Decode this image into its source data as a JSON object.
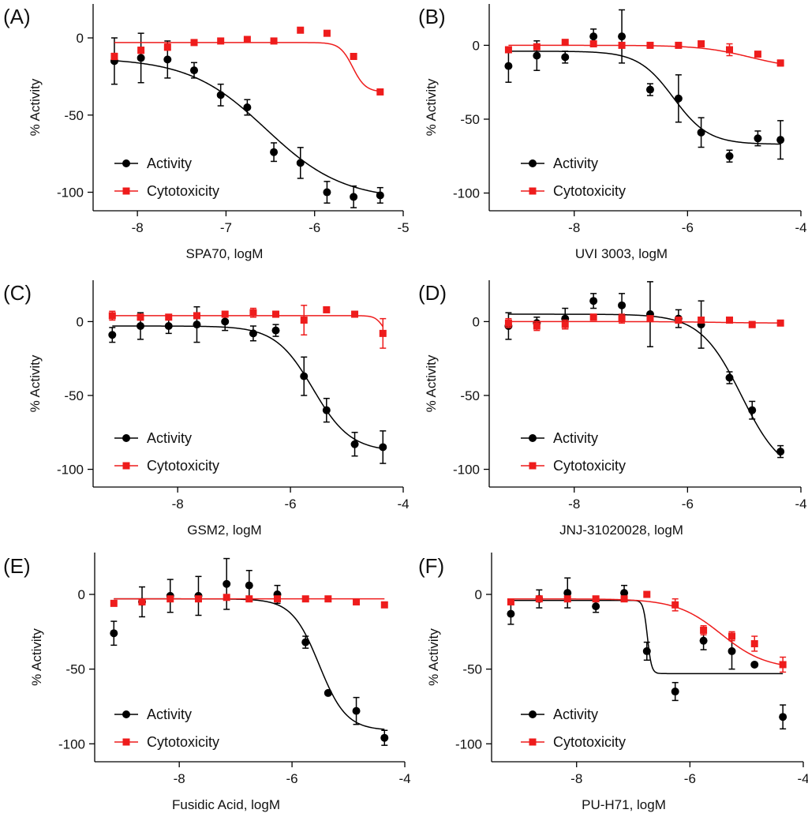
{
  "figure": {
    "colors": {
      "activity": "#000000",
      "cytotoxicity": "#ee1c1c"
    }
  },
  "chart_data": [
    {
      "panel": "(A)",
      "type": "line",
      "xlabel": "SPA70, logM",
      "ylabel": "% Activity",
      "xlim": [
        -8.5,
        -5
      ],
      "ylim": [
        -112,
        22
      ],
      "xticks": [
        -8,
        -7,
        -6,
        -5
      ],
      "xtick_labels": [
        "-8",
        "-7",
        "-6",
        "-5"
      ],
      "yticks": [
        0,
        -50,
        -100
      ],
      "ytick_labels": [
        "0",
        "-50",
        "-100"
      ],
      "legend": [
        "Activity",
        "Cytotoxicity"
      ],
      "series": [
        {
          "name": "Activity",
          "x": [
            -8.26,
            -7.96,
            -7.66,
            -7.36,
            -7.06,
            -6.76,
            -6.46,
            -6.16,
            -5.86,
            -5.56,
            -5.26
          ],
          "y": [
            -15,
            -13,
            -14,
            -21,
            -37,
            -45,
            -74,
            -81,
            -100,
            -103,
            -102
          ],
          "err": [
            15,
            16,
            12,
            5,
            7,
            5,
            6,
            10,
            7,
            7,
            5
          ],
          "fit": {
            "top": -13,
            "bottom": -105,
            "logec50": -6.55,
            "hill": 1.0
          }
        },
        {
          "name": "Cytotoxicity",
          "x": [
            -8.26,
            -7.96,
            -7.66,
            -7.36,
            -7.06,
            -6.76,
            -6.46,
            -6.16,
            -5.86,
            -5.56,
            -5.26
          ],
          "y": [
            -12,
            -8,
            -6,
            -3,
            -2,
            -1,
            -2,
            5,
            3,
            -12,
            -35
          ],
          "err": [
            2,
            2,
            2,
            1,
            1,
            1,
            1,
            1,
            1,
            1,
            1
          ],
          "fit": {
            "top": -3,
            "bottom": -35,
            "logec50": -5.57,
            "hill": 6.0
          }
        }
      ]
    },
    {
      "panel": "(B)",
      "type": "line",
      "xlabel": "UVI 3003, logM",
      "ylabel": "% Activity",
      "xlim": [
        -9.5,
        -4
      ],
      "ylim": [
        -112,
        28
      ],
      "xticks": [
        -8,
        -6,
        -4
      ],
      "xtick_labels": [
        "-8",
        "-6",
        "-4"
      ],
      "yticks": [
        0,
        -50,
        -100
      ],
      "ytick_labels": [
        "0",
        "-50",
        "-100"
      ],
      "legend": [
        "Activity",
        "Cytotoxicity"
      ],
      "series": [
        {
          "name": "Activity",
          "x": [
            -9.16,
            -8.66,
            -8.16,
            -7.66,
            -7.16,
            -6.66,
            -6.16,
            -5.76,
            -5.26,
            -4.76,
            -4.36
          ],
          "y": [
            -14,
            -7,
            -8,
            6,
            6,
            -30,
            -36,
            -59,
            -75,
            -63,
            -64
          ],
          "err": [
            11,
            10,
            4,
            5,
            18,
            4,
            16,
            10,
            4,
            5,
            13
          ],
          "fit": {
            "top": -4,
            "bottom": -67,
            "logec50": -6.25,
            "hill": 1.4
          }
        },
        {
          "name": "Cytotoxicity",
          "x": [
            -9.16,
            -8.66,
            -8.16,
            -7.66,
            -7.16,
            -6.66,
            -6.16,
            -5.76,
            -5.26,
            -4.76,
            -4.36
          ],
          "y": [
            -3,
            -1,
            2,
            1,
            0,
            0,
            0,
            1,
            -3,
            -6,
            -12
          ],
          "err": [
            1,
            1,
            1,
            1,
            1,
            1,
            1,
            1,
            4,
            1,
            2
          ],
          "fit": {
            "top": 0,
            "bottom": -16,
            "logec50": -4.9,
            "hill": 1.0
          }
        }
      ]
    },
    {
      "panel": "(C)",
      "type": "line",
      "xlabel": "GSM2, logM",
      "ylabel": "% Activity",
      "xlim": [
        -9.5,
        -4
      ],
      "ylim": [
        -112,
        28
      ],
      "xticks": [
        -8,
        -6,
        -4
      ],
      "xtick_labels": [
        "-8",
        "-6",
        "-4"
      ],
      "yticks": [
        0,
        -50,
        -100
      ],
      "ytick_labels": [
        "0",
        "-50",
        "-100"
      ],
      "legend": [
        "Activity",
        "Cytotoxicity"
      ],
      "series": [
        {
          "name": "Activity",
          "x": [
            -9.16,
            -8.66,
            -8.16,
            -7.66,
            -7.16,
            -6.66,
            -6.26,
            -5.76,
            -5.36,
            -4.86,
            -4.36
          ],
          "y": [
            -9,
            -3,
            -3,
            -2,
            0,
            -8,
            -6,
            -37,
            -60,
            -83,
            -85
          ],
          "err": [
            5,
            9,
            5,
            12,
            6,
            5,
            4,
            13,
            8,
            8,
            11
          ],
          "fit": {
            "top": -3,
            "bottom": -88,
            "logec50": -5.6,
            "hill": 1.3
          }
        },
        {
          "name": "Cytotoxicity",
          "x": [
            -9.16,
            -8.66,
            -8.16,
            -7.66,
            -7.16,
            -6.66,
            -6.26,
            -5.76,
            -5.36,
            -4.86,
            -4.36
          ],
          "y": [
            4,
            3,
            3,
            4,
            5,
            6,
            5,
            1,
            8,
            5,
            -8
          ],
          "err": [
            3,
            2,
            1,
            1,
            2,
            3,
            2,
            10,
            1,
            1,
            10
          ],
          "fit": {
            "top": 4,
            "bottom": -12,
            "logec50": -4.35,
            "hill": 6.0
          }
        }
      ]
    },
    {
      "panel": "(D)",
      "type": "line",
      "xlabel": "JNJ-31020028, logM",
      "ylabel": "% Activity",
      "xlim": [
        -9.5,
        -4
      ],
      "ylim": [
        -112,
        28
      ],
      "xticks": [
        -8,
        -6,
        -4
      ],
      "xtick_labels": [
        "-8",
        "-6",
        "-4"
      ],
      "yticks": [
        0,
        -50,
        -100
      ],
      "ytick_labels": [
        "0",
        "-50",
        "-100"
      ],
      "legend": [
        "Activity",
        "Cytotoxicity"
      ],
      "series": [
        {
          "name": "Activity",
          "x": [
            -9.16,
            -8.66,
            -8.16,
            -7.66,
            -7.16,
            -6.66,
            -6.16,
            -5.76,
            -5.26,
            -4.86,
            -4.36
          ],
          "y": [
            -3,
            -1,
            2,
            14,
            11,
            5,
            2,
            -2,
            -38,
            -60,
            -88
          ],
          "err": [
            9,
            4,
            7,
            5,
            8,
            22,
            6,
            16,
            4,
            6,
            4
          ],
          "fit": {
            "top": 5,
            "bottom": -105,
            "logec50": -5.05,
            "hill": 1.2
          }
        },
        {
          "name": "Cytotoxicity",
          "x": [
            -9.16,
            -8.66,
            -8.16,
            -7.66,
            -7.16,
            -6.66,
            -6.16,
            -5.76,
            -5.26,
            -4.86,
            -4.36
          ],
          "y": [
            -1,
            -3,
            -2,
            3,
            2,
            2,
            1,
            1,
            1,
            -2,
            -1
          ],
          "err": [
            3,
            3,
            3,
            2,
            3,
            1,
            1,
            1,
            1,
            2,
            1
          ],
          "fit": {
            "top": 0,
            "bottom": -1,
            "logec50": -5.5,
            "hill": 1.0
          }
        }
      ]
    },
    {
      "panel": "(E)",
      "type": "line",
      "xlabel": "Fusidic Acid, logM",
      "ylabel": "% Activity",
      "xlim": [
        -9.5,
        -4
      ],
      "ylim": [
        -112,
        28
      ],
      "xticks": [
        -8,
        -6,
        -4
      ],
      "xtick_labels": [
        "-8",
        "-6",
        "-4"
      ],
      "yticks": [
        0,
        -50,
        -100
      ],
      "ytick_labels": [
        "0",
        "-50",
        "-100"
      ],
      "legend": [
        "Activity",
        "Cytotoxicity"
      ],
      "series": [
        {
          "name": "Activity",
          "x": [
            -9.16,
            -8.66,
            -8.16,
            -7.66,
            -7.16,
            -6.76,
            -6.26,
            -5.76,
            -5.36,
            -4.86,
            -4.36
          ],
          "y": [
            -26,
            -5,
            -1,
            -1,
            7,
            6,
            0,
            -32,
            -66,
            -78,
            -96
          ],
          "err": [
            8,
            10,
            11,
            13,
            17,
            10,
            6,
            4,
            1,
            9,
            5
          ],
          "fit": {
            "top": -3,
            "bottom": -91,
            "logec50": -5.52,
            "hill": 1.8
          }
        },
        {
          "name": "Cytotoxicity",
          "x": [
            -9.16,
            -8.66,
            -8.16,
            -7.66,
            -7.16,
            -6.76,
            -6.26,
            -5.76,
            -5.36,
            -4.86,
            -4.36
          ],
          "y": [
            -6,
            -5,
            -3,
            -3,
            -2,
            -3,
            -3,
            -3,
            -3,
            -5,
            -7
          ],
          "err": [
            1,
            1,
            1,
            1,
            1,
            1,
            1,
            1,
            1,
            1,
            1
          ],
          "fit": {
            "top": -3,
            "bottom": -3,
            "logec50": -6,
            "hill": 1.0
          }
        }
      ]
    },
    {
      "panel": "(F)",
      "type": "line",
      "xlabel": "PU-H71, logM",
      "ylabel": "% Activity",
      "xlim": [
        -9.5,
        -4
      ],
      "ylim": [
        -112,
        28
      ],
      "xticks": [
        -8,
        -6,
        -4
      ],
      "xtick_labels": [
        "-8",
        "-6",
        "-4"
      ],
      "yticks": [
        0,
        -50,
        -100
      ],
      "ytick_labels": [
        "0",
        "-50",
        "-100"
      ],
      "legend": [
        "Activity",
        "Cytotoxicity"
      ],
      "series": [
        {
          "name": "Activity",
          "x": [
            -9.16,
            -8.66,
            -8.16,
            -7.66,
            -7.16,
            -6.76,
            -6.26,
            -5.76,
            -5.26,
            -4.86,
            -4.36
          ],
          "y": [
            -13,
            -3,
            1,
            -8,
            1,
            -38,
            -65,
            -31,
            -38,
            -47,
            -82
          ],
          "err": [
            7,
            6,
            10,
            4,
            5,
            6,
            6,
            6,
            12,
            1,
            8
          ],
          "fit": {
            "top": -4,
            "bottom": -53,
            "logec50": -6.75,
            "hill": 12.0
          }
        },
        {
          "name": "Cytotoxicity",
          "x": [
            -9.16,
            -8.66,
            -8.16,
            -7.66,
            -7.16,
            -6.76,
            -6.26,
            -5.76,
            -5.26,
            -4.86,
            -4.36
          ],
          "y": [
            -5,
            -3,
            -3,
            -3,
            -3,
            0,
            -7,
            -24,
            -28,
            -33,
            -47
          ],
          "err": [
            1,
            1,
            1,
            1,
            1,
            1,
            4,
            3,
            3,
            5,
            5
          ],
          "fit": {
            "top": -3,
            "bottom": -50,
            "logec50": -5.45,
            "hill": 1.1
          }
        }
      ]
    }
  ]
}
